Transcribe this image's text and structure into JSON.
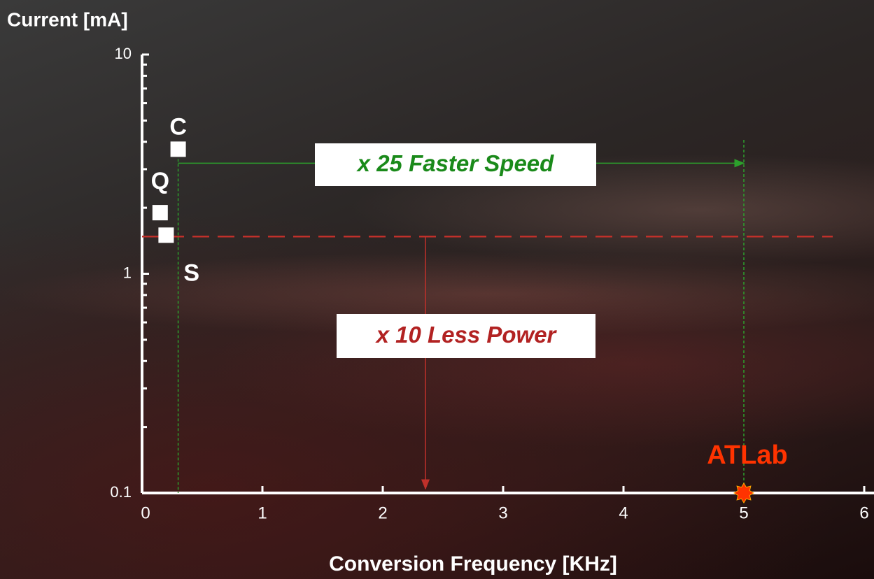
{
  "chart_data": {
    "type": "scatter",
    "y_label": "Current [mA]",
    "x_label": "Conversion Frequency [KHz]",
    "xlim": [
      0,
      6
    ],
    "xticks": [
      0,
      1,
      2,
      3,
      4,
      5,
      6
    ],
    "ylim": [
      0.1,
      10
    ],
    "yticks": [
      0.1,
      1,
      10
    ],
    "y_log": true,
    "yminorticks": [
      0.2,
      0.3,
      0.4,
      0.5,
      0.6,
      0.7,
      0.8,
      0.9,
      2,
      3,
      4,
      5,
      6,
      7,
      8,
      9
    ],
    "series": [
      {
        "name": "C",
        "color": "#ffffff",
        "x": [
          0.3
        ],
        "values": [
          3.7
        ]
      },
      {
        "name": "Q",
        "color": "#ffffff",
        "x": [
          0.15
        ],
        "values": [
          1.9
        ]
      },
      {
        "name": "S",
        "color": "#ffffff",
        "x": [
          0.2
        ],
        "values": [
          1.5
        ]
      },
      {
        "name": "ATLab",
        "color": "#ff3300",
        "x": [
          5
        ],
        "values": [
          0.1
        ]
      }
    ],
    "annotations": [
      "x 25 Faster Speed",
      "x 10 Less Power"
    ]
  }
}
